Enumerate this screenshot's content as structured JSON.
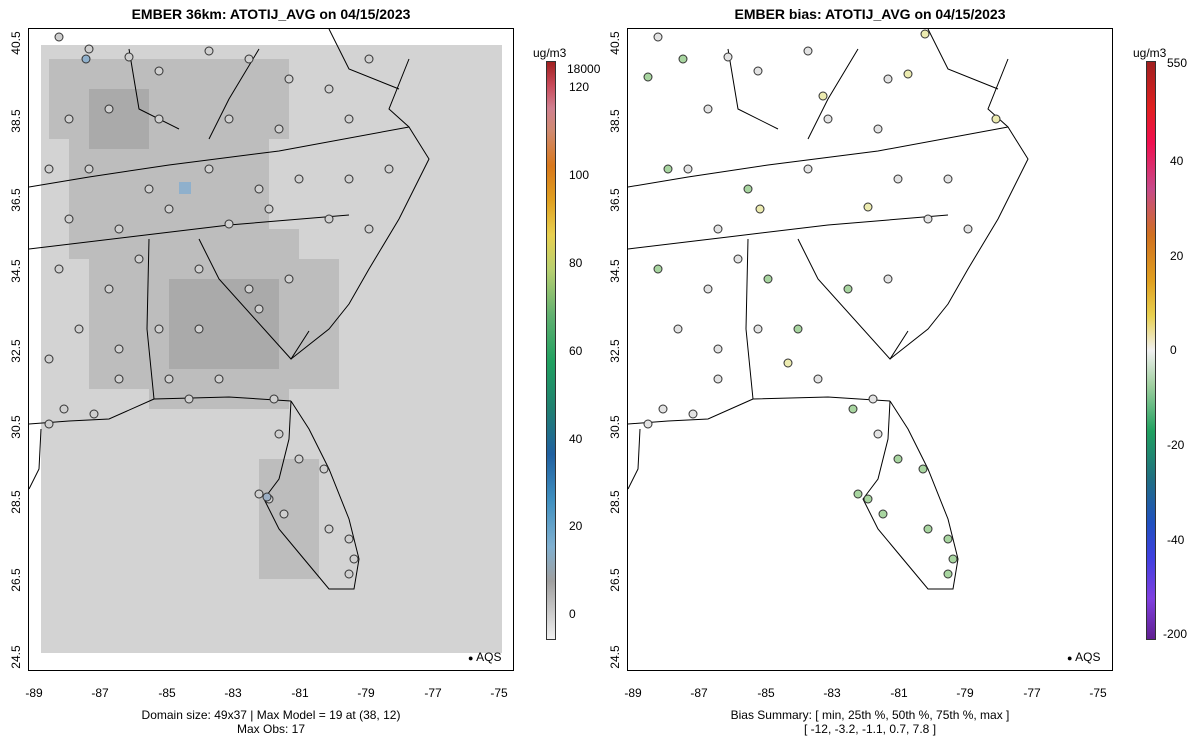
{
  "left": {
    "title": "EMBER 36km: ATOTIJ_AVG on 04/15/2023",
    "footer_line1": "Domain size: 49x37 | Max Model = 19 at (38, 12)",
    "footer_line2": "Max Obs: 17",
    "legend_label": "AQS",
    "colorbar_unit": "ug/m3",
    "colorbar_labels": [
      "18000",
      "120",
      "100",
      "80",
      "60",
      "40",
      "20",
      "0"
    ]
  },
  "right": {
    "title": "EMBER bias: ATOTIJ_AVG on 04/15/2023",
    "footer_line1": "Bias Summary: [ min, 25th %, 50th %, 75th %, max ]",
    "footer_line2": "[ -12,   -3.2,   -1.1,   0.7,   7.8 ]",
    "legend_label": "AQS",
    "colorbar_unit": "ug/m3",
    "colorbar_labels": [
      "550",
      "40",
      "20",
      "0",
      "-20",
      "-40",
      "-200"
    ]
  },
  "axes": {
    "lat_ticks": [
      "40.5",
      "38.5",
      "36.5",
      "34.5",
      "32.5",
      "30.5",
      "28.5",
      "26.5",
      "24.5"
    ],
    "lon_ticks": [
      "-89",
      "-87",
      "-85",
      "-83",
      "-81",
      "-79",
      "-77",
      "-75"
    ]
  },
  "colors": {
    "model_grid": "#c6c6c6",
    "model_grid_dark": "#b0b0b0",
    "station_neutral": "#cfcfcf",
    "station_bias_neg": "#a8d5a0",
    "station_bias_pos": "#ecebb0"
  }
}
